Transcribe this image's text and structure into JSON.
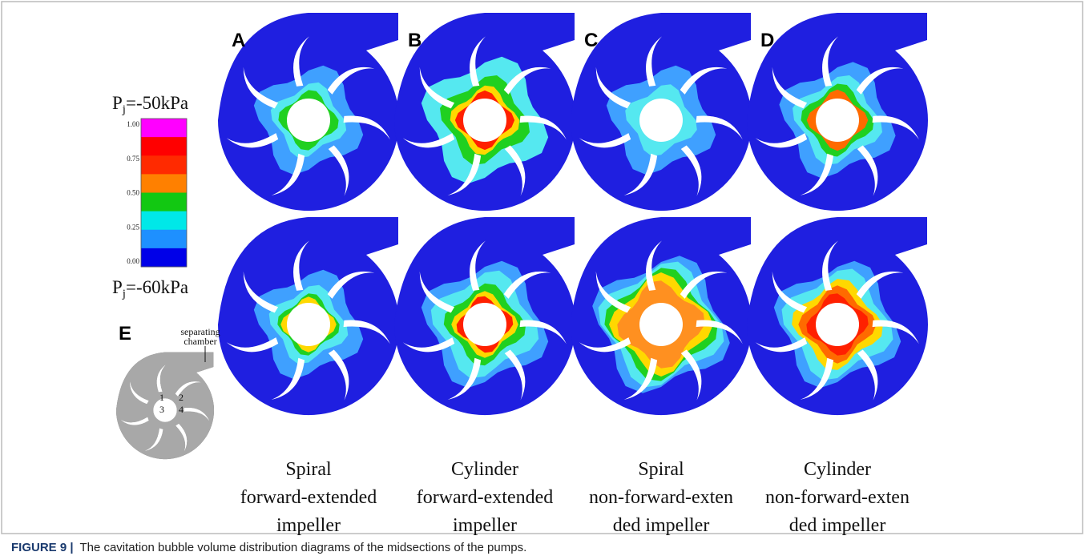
{
  "panels": [
    {
      "label": "A",
      "caption": [
        "Spiral",
        "forward-extended",
        "impeller"
      ]
    },
    {
      "label": "B",
      "caption": [
        "Cylinder",
        "forward-extended",
        "impeller"
      ]
    },
    {
      "label": "C",
      "caption": [
        "Spiral",
        "non-forward-exten",
        "ded impeller"
      ]
    },
    {
      "label": "D",
      "caption": [
        "Cylinder",
        "non-forward-exten",
        "ded impeller"
      ]
    }
  ],
  "pressures": [
    {
      "symbol": "P",
      "subscript": "j",
      "text": "=-50kPa"
    },
    {
      "symbol": "P",
      "subscript": "j",
      "text": "=-60kPa"
    }
  ],
  "colorbar": {
    "ticks": [
      "1.00",
      "0.75",
      "0.50",
      "0.25",
      "0.00"
    ]
  },
  "inset": {
    "label": "E",
    "note": [
      "separating",
      "chamber"
    ],
    "chambers": [
      "1",
      "2",
      "3",
      "4"
    ]
  },
  "figure_caption": {
    "label": "FIGURE 9 |",
    "text": "The cavitation bubble volume distribution diagrams of the midsections of the pumps."
  }
}
